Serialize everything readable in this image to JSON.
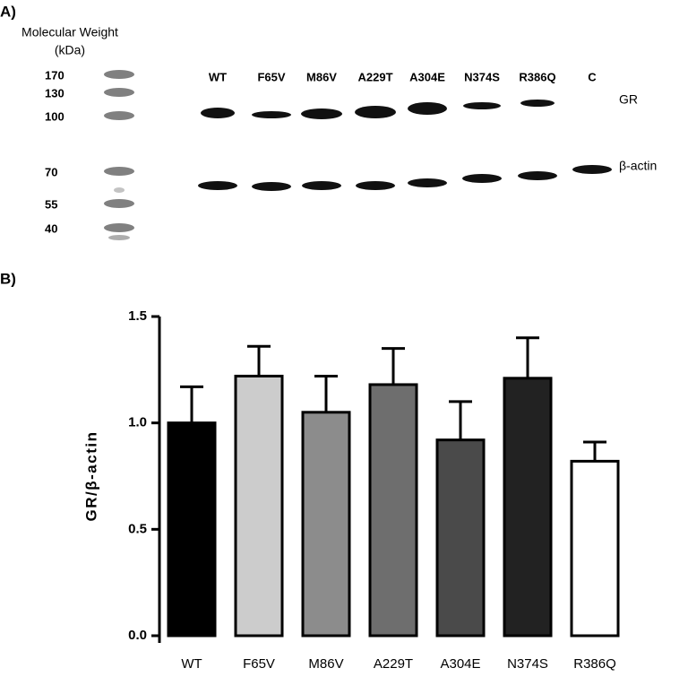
{
  "panel_a": {
    "label": "A)",
    "mw_title": "Molecular Weight",
    "mw_unit": "(kDa)",
    "markers": [
      "170",
      "130",
      "100",
      "70",
      "55",
      "40"
    ],
    "lanes": [
      "WT",
      "F65V",
      "M86V",
      "A229T",
      "A304E",
      "N374S",
      "R386Q",
      "C"
    ],
    "bands": [
      "GR",
      "β-actin"
    ]
  },
  "chart_data": {
    "type": "bar",
    "panel_label": "B)",
    "y_label": "GR/β-actin",
    "categories": [
      "WT",
      "F65V",
      "M86V",
      "A229T",
      "A304E",
      "N374S",
      "R386Q"
    ],
    "values": [
      1.0,
      1.22,
      1.05,
      1.18,
      0.92,
      1.21,
      0.82
    ],
    "errors": [
      0.17,
      0.14,
      0.17,
      0.17,
      0.18,
      0.19,
      0.09
    ],
    "colors": [
      "#000000",
      "#cccccc",
      "#8c8c8c",
      "#6e6e6e",
      "#4a4a4a",
      "#222222",
      "#ffffff"
    ],
    "ylim": [
      0,
      1.5
    ],
    "yticks": [
      {
        "value": 0,
        "label": "0.0"
      },
      0.5,
      {
        "value": 1,
        "label": "1.0"
      },
      1.5
    ]
  }
}
